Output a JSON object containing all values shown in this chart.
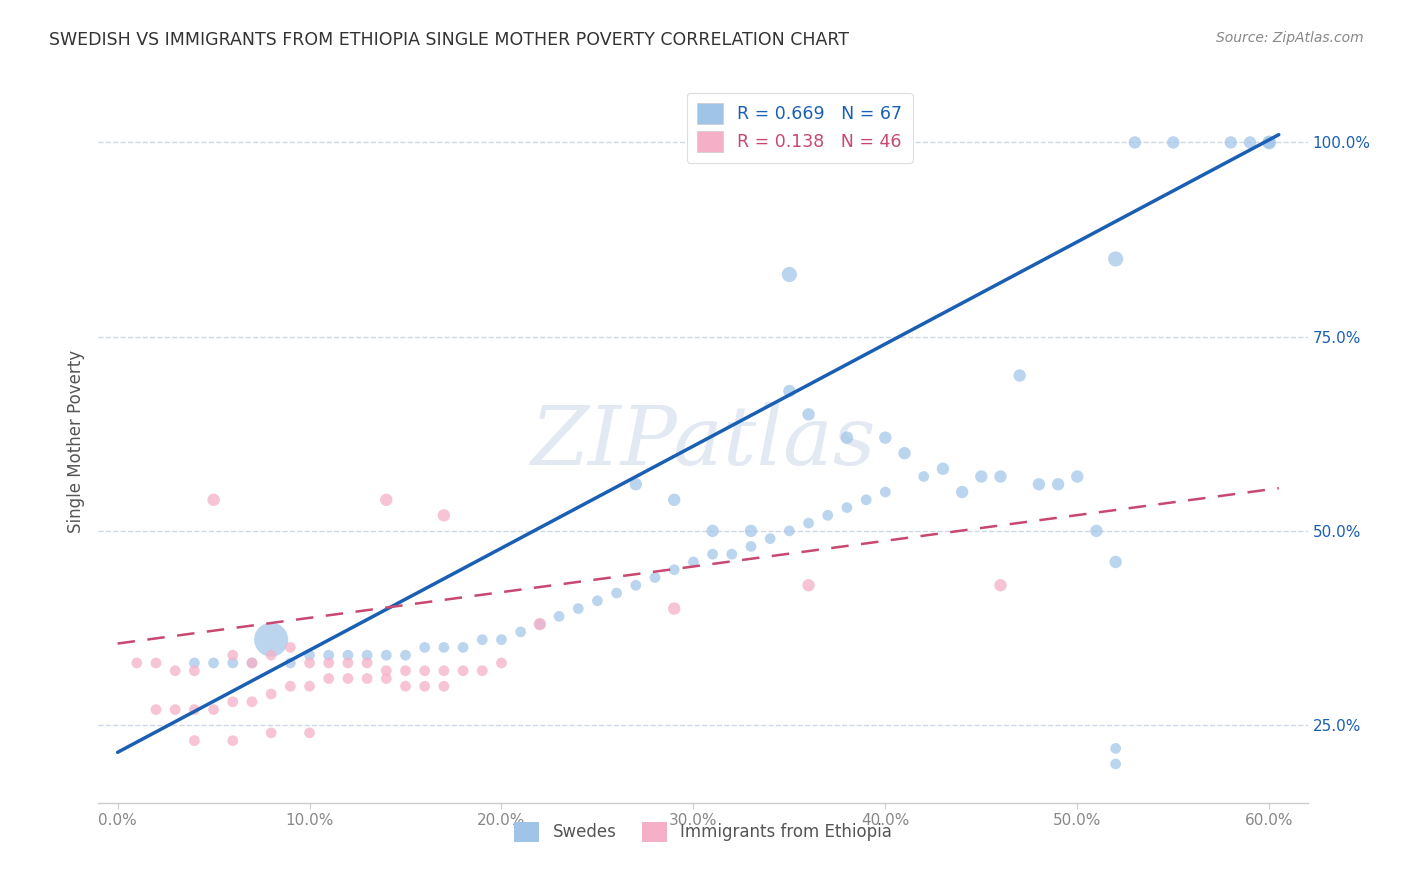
{
  "title": "SWEDISH VS IMMIGRANTS FROM ETHIOPIA SINGLE MOTHER POVERTY CORRELATION CHART",
  "source": "Source: ZipAtlas.com",
  "ylabel": "Single Mother Poverty",
  "x_tick_labels": [
    "0.0%",
    "10.0%",
    "20.0%",
    "30.0%",
    "40.0%",
    "50.0%",
    "60.0%"
  ],
  "x_tick_values": [
    0.0,
    0.1,
    0.2,
    0.3,
    0.4,
    0.5,
    0.6
  ],
  "y_tick_labels": [
    "25.0%",
    "50.0%",
    "75.0%",
    "100.0%"
  ],
  "y_tick_values": [
    0.25,
    0.5,
    0.75,
    1.0
  ],
  "xlim": [
    -0.01,
    0.62
  ],
  "ylim": [
    0.15,
    1.08
  ],
  "watermark": "ZIPatlas",
  "blue_r": 0.669,
  "blue_n": 67,
  "pink_r": 0.138,
  "pink_n": 46,
  "blue_color": "#a0c4e8",
  "pink_color": "#f5b0c8",
  "blue_line_color": "#1a5fb4",
  "pink_line_color": "#c84870",
  "grid_color": "#c8d4e4",
  "background_color": "#ffffff",
  "blue_line_x0": 0.0,
  "blue_line_y0": 0.215,
  "blue_line_x1": 0.605,
  "blue_line_y1": 1.01,
  "pink_line_x0": 0.0,
  "pink_line_y0": 0.355,
  "pink_line_x1": 0.605,
  "pink_line_y1": 0.555,
  "blue_scatter_x": [
    0.08,
    0.04,
    0.05,
    0.06,
    0.07,
    0.09,
    0.1,
    0.11,
    0.12,
    0.13,
    0.14,
    0.15,
    0.16,
    0.17,
    0.18,
    0.19,
    0.2,
    0.21,
    0.22,
    0.23,
    0.24,
    0.25,
    0.26,
    0.27,
    0.28,
    0.29,
    0.3,
    0.31,
    0.32,
    0.33,
    0.34,
    0.35,
    0.36,
    0.37,
    0.38,
    0.39,
    0.4,
    0.42,
    0.35,
    0.36,
    0.38,
    0.4,
    0.41,
    0.43,
    0.45,
    0.46,
    0.47,
    0.49,
    0.52,
    0.53,
    0.55,
    0.58,
    0.59,
    0.6,
    0.44,
    0.48,
    0.5,
    0.51,
    0.27,
    0.29,
    0.31,
    0.33,
    0.35,
    0.52,
    0.52,
    0.52,
    0.6
  ],
  "blue_scatter_y": [
    0.36,
    0.33,
    0.33,
    0.33,
    0.33,
    0.33,
    0.34,
    0.34,
    0.34,
    0.34,
    0.34,
    0.34,
    0.35,
    0.35,
    0.35,
    0.36,
    0.36,
    0.37,
    0.38,
    0.39,
    0.4,
    0.41,
    0.42,
    0.43,
    0.44,
    0.45,
    0.46,
    0.47,
    0.47,
    0.48,
    0.49,
    0.5,
    0.51,
    0.52,
    0.53,
    0.54,
    0.55,
    0.57,
    0.68,
    0.65,
    0.62,
    0.62,
    0.6,
    0.58,
    0.57,
    0.57,
    0.7,
    0.56,
    0.46,
    1.0,
    1.0,
    1.0,
    1.0,
    1.0,
    0.55,
    0.56,
    0.57,
    0.5,
    0.56,
    0.54,
    0.5,
    0.5,
    0.83,
    0.2,
    0.85,
    0.22,
    1.0
  ],
  "blue_scatter_sizes": [
    600,
    60,
    60,
    60,
    60,
    60,
    60,
    60,
    60,
    60,
    60,
    60,
    60,
    60,
    60,
    60,
    60,
    60,
    60,
    60,
    60,
    60,
    60,
    60,
    60,
    60,
    60,
    60,
    60,
    60,
    60,
    60,
    60,
    60,
    60,
    60,
    60,
    60,
    80,
    80,
    80,
    80,
    80,
    80,
    80,
    80,
    80,
    80,
    80,
    80,
    80,
    80,
    80,
    80,
    80,
    80,
    80,
    80,
    80,
    80,
    80,
    80,
    120,
    60,
    120,
    60,
    100
  ],
  "pink_scatter_x": [
    0.01,
    0.02,
    0.03,
    0.04,
    0.05,
    0.06,
    0.07,
    0.08,
    0.09,
    0.1,
    0.11,
    0.12,
    0.13,
    0.14,
    0.15,
    0.16,
    0.17,
    0.18,
    0.19,
    0.2,
    0.02,
    0.03,
    0.04,
    0.05,
    0.06,
    0.07,
    0.08,
    0.09,
    0.1,
    0.11,
    0.12,
    0.13,
    0.14,
    0.15,
    0.16,
    0.17,
    0.04,
    0.06,
    0.08,
    0.1,
    0.14,
    0.17,
    0.22,
    0.29,
    0.36,
    0.46
  ],
  "pink_scatter_y": [
    0.33,
    0.33,
    0.32,
    0.32,
    0.54,
    0.34,
    0.33,
    0.34,
    0.35,
    0.33,
    0.33,
    0.33,
    0.33,
    0.32,
    0.32,
    0.32,
    0.32,
    0.32,
    0.32,
    0.33,
    0.27,
    0.27,
    0.27,
    0.27,
    0.28,
    0.28,
    0.29,
    0.3,
    0.3,
    0.31,
    0.31,
    0.31,
    0.31,
    0.3,
    0.3,
    0.3,
    0.23,
    0.23,
    0.24,
    0.24,
    0.54,
    0.52,
    0.38,
    0.4,
    0.43,
    0.43
  ],
  "pink_scatter_sizes": [
    60,
    60,
    60,
    60,
    80,
    60,
    60,
    60,
    60,
    60,
    60,
    60,
    60,
    60,
    60,
    60,
    60,
    60,
    60,
    60,
    60,
    60,
    60,
    60,
    60,
    60,
    60,
    60,
    60,
    60,
    60,
    60,
    60,
    60,
    60,
    60,
    60,
    60,
    60,
    60,
    80,
    80,
    80,
    80,
    80,
    80
  ]
}
